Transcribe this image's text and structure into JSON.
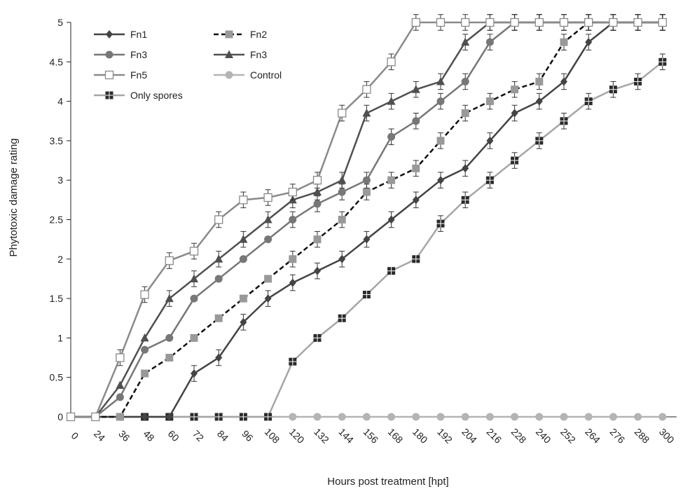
{
  "chart_data": {
    "type": "line",
    "xlabel": "Hours post treatment [hpt]",
    "ylabel": "Phytotoxic damage rating",
    "x": [
      0,
      24,
      36,
      48,
      60,
      72,
      84,
      96,
      108,
      120,
      132,
      144,
      156,
      168,
      180,
      192,
      204,
      216,
      228,
      240,
      252,
      264,
      276,
      288,
      300
    ],
    "x_tick_labels": [
      "0",
      "24",
      "36",
      "48",
      "60",
      "72",
      "84",
      "96",
      "108",
      "120",
      "132",
      "144",
      "156",
      "168",
      "180",
      "192",
      "204",
      "216",
      "228",
      "240",
      "252",
      "264",
      "276",
      "288",
      "300"
    ],
    "ylim": [
      0,
      5
    ],
    "y_tick_labels": [
      "0",
      "0.5",
      "1",
      "1.5",
      "2",
      "2.5",
      "3",
      "3.5",
      "4",
      "4.5",
      "5"
    ],
    "y_ticks": [
      0,
      0.5,
      1,
      1.5,
      2,
      2.5,
      3,
      3.5,
      4,
      4.5,
      5
    ],
    "legend_position": "top-left",
    "error_bar": 0.1,
    "series": [
      {
        "name": "Fn1",
        "color": "#444444",
        "marker": "diamond",
        "dash": false,
        "values": [
          0,
          0,
          0,
          0,
          0,
          0.55,
          0.75,
          1.2,
          1.5,
          1.7,
          1.85,
          2.0,
          2.25,
          2.5,
          2.75,
          3.0,
          3.15,
          3.5,
          3.85,
          4.0,
          4.25,
          4.75,
          5,
          5,
          5
        ],
        "error_from": 5
      },
      {
        "name": "Fn2",
        "color": "#999999",
        "marker": "square",
        "dash": true,
        "values": [
          0,
          0,
          0,
          0.55,
          0.75,
          1.0,
          1.25,
          1.5,
          1.75,
          2.0,
          2.25,
          2.5,
          2.85,
          3.0,
          3.15,
          3.5,
          3.85,
          4.0,
          4.15,
          4.25,
          4.75,
          5,
          5,
          5,
          5
        ],
        "error_from": 9
      },
      {
        "name": "Fn3",
        "color": "#777777",
        "marker": "circle",
        "dash": false,
        "values": [
          0,
          0,
          0.25,
          0.85,
          1.0,
          1.5,
          1.75,
          2.0,
          2.25,
          2.5,
          2.7,
          2.85,
          3.0,
          3.55,
          3.75,
          4.0,
          4.25,
          4.75,
          5,
          5,
          5,
          5,
          5,
          5,
          5
        ],
        "error_from": 9
      },
      {
        "name": "Fn3",
        "color": "#505050",
        "marker": "triangle",
        "dash": false,
        "values": [
          0,
          0,
          0.4,
          1.0,
          1.5,
          1.75,
          2.0,
          2.25,
          2.5,
          2.75,
          2.85,
          3.0,
          3.85,
          4.0,
          4.15,
          4.25,
          4.75,
          5,
          5,
          5,
          5,
          5,
          5,
          5,
          5
        ],
        "error_from": 4
      },
      {
        "name": "Fn5",
        "color": "#8a8a8a",
        "marker": "open-square",
        "dash": false,
        "values": [
          0,
          0,
          0.75,
          1.55,
          1.98,
          2.1,
          2.5,
          2.75,
          2.78,
          2.85,
          3.0,
          3.85,
          4.15,
          4.5,
          5,
          5,
          5,
          5,
          5,
          5,
          5,
          5,
          5,
          5,
          5
        ],
        "error_from": 2
      },
      {
        "name": "Control",
        "color": "#b4b4b4",
        "marker": "circle",
        "dash": false,
        "values": [
          0,
          0,
          0,
          0,
          0,
          0,
          0,
          0,
          0,
          0,
          0,
          0,
          0,
          0,
          0,
          0,
          0,
          0,
          0,
          0,
          0,
          0,
          0,
          0,
          0
        ],
        "error_from": 99
      },
      {
        "name": "Only spores",
        "color": "#a6a6a6",
        "marker": "cross-square",
        "dash": false,
        "values": [
          0,
          0,
          0,
          0,
          0,
          0,
          0,
          0,
          0,
          0.7,
          1.0,
          1.25,
          1.55,
          1.85,
          2.0,
          2.45,
          2.75,
          3.0,
          3.25,
          3.5,
          3.75,
          4.0,
          4.15,
          4.25,
          4.5
        ],
        "error_from": 15
      }
    ],
    "legend_order": [
      0,
      1,
      2,
      3,
      4,
      5,
      6
    ]
  }
}
